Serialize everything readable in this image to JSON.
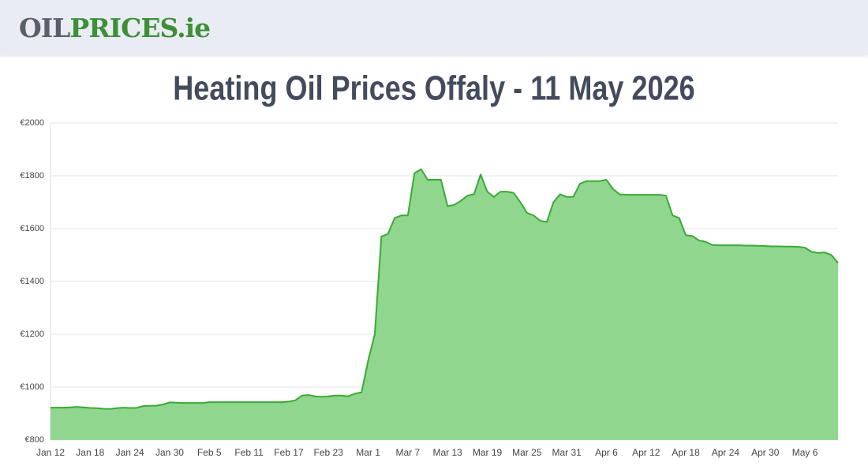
{
  "header": {
    "logo": {
      "part1": "OIL",
      "part2": "PRICES",
      "part3": ".ie"
    }
  },
  "chart_data": {
    "type": "area",
    "title": "Heating Oil Prices Offaly - 11 May 2026",
    "color": "#3aaa35",
    "fill": "#90d68e",
    "grid": true,
    "categories": [
      "Jan 12",
      null,
      null,
      null,
      null,
      null,
      "Jan 18",
      null,
      null,
      null,
      null,
      null,
      "Jan 24",
      null,
      null,
      null,
      null,
      null,
      "Jan 30",
      null,
      null,
      null,
      null,
      null,
      "Feb 5",
      null,
      null,
      null,
      null,
      null,
      "Feb 11",
      null,
      null,
      null,
      null,
      null,
      "Feb 17",
      null,
      null,
      null,
      null,
      null,
      "Feb 23",
      null,
      null,
      null,
      null,
      null,
      "Mar 1",
      null,
      null,
      null,
      null,
      null,
      "Mar 7",
      null,
      null,
      null,
      null,
      null,
      "Mar 13",
      null,
      null,
      null,
      null,
      null,
      "Mar 19",
      null,
      null,
      null,
      null,
      null,
      "Mar 25",
      null,
      null,
      null,
      null,
      null,
      "Mar 31",
      null,
      null,
      null,
      null,
      null,
      "Apr 6",
      null,
      null,
      null,
      null,
      null,
      "Apr 12",
      null,
      null,
      null,
      null,
      null,
      "Apr 18",
      null,
      null,
      null,
      null,
      null,
      "Apr 24",
      null,
      null,
      null,
      null,
      null,
      "Apr 30",
      null,
      null,
      null,
      null,
      null,
      "May 6",
      null,
      null,
      null,
      null,
      null
    ],
    "values": [
      922,
      922,
      922,
      923,
      925,
      923,
      921,
      920,
      918,
      917,
      920,
      922,
      921,
      921,
      928,
      929,
      930,
      934,
      942,
      941,
      940,
      940,
      940,
      940,
      943,
      943,
      943,
      943,
      943,
      943,
      943,
      943,
      943,
      943,
      943,
      943,
      945,
      950,
      968,
      970,
      965,
      963,
      965,
      968,
      968,
      965,
      975,
      980,
      1100,
      1200,
      1570,
      1580,
      1640,
      1650,
      1650,
      1810,
      1825,
      1785,
      1785,
      1785,
      1685,
      1690,
      1705,
      1725,
      1730,
      1805,
      1740,
      1720,
      1740,
      1740,
      1735,
      1700,
      1660,
      1650,
      1630,
      1625,
      1700,
      1730,
      1720,
      1720,
      1770,
      1780,
      1780,
      1780,
      1785,
      1750,
      1730,
      1728,
      1728,
      1728,
      1728,
      1728,
      1728,
      1725,
      1650,
      1640,
      1575,
      1572,
      1555,
      1550,
      1538,
      1537,
      1537,
      1537,
      1537,
      1536,
      1536,
      1535,
      1534,
      1533,
      1533,
      1532,
      1532,
      1531,
      1528,
      1512,
      1508,
      1510,
      1500,
      1470
    ],
    "ylim": [
      800,
      2000
    ],
    "yticks": [
      {
        "value": 800,
        "label": "€800"
      },
      {
        "value": 1000,
        "label": "€1000"
      },
      {
        "value": 1200,
        "label": "€1200"
      },
      {
        "value": 1400,
        "label": "€1400"
      },
      {
        "value": 1600,
        "label": "€1600"
      },
      {
        "value": 1800,
        "label": "€1800"
      },
      {
        "value": 2000,
        "label": "€2000"
      }
    ]
  }
}
